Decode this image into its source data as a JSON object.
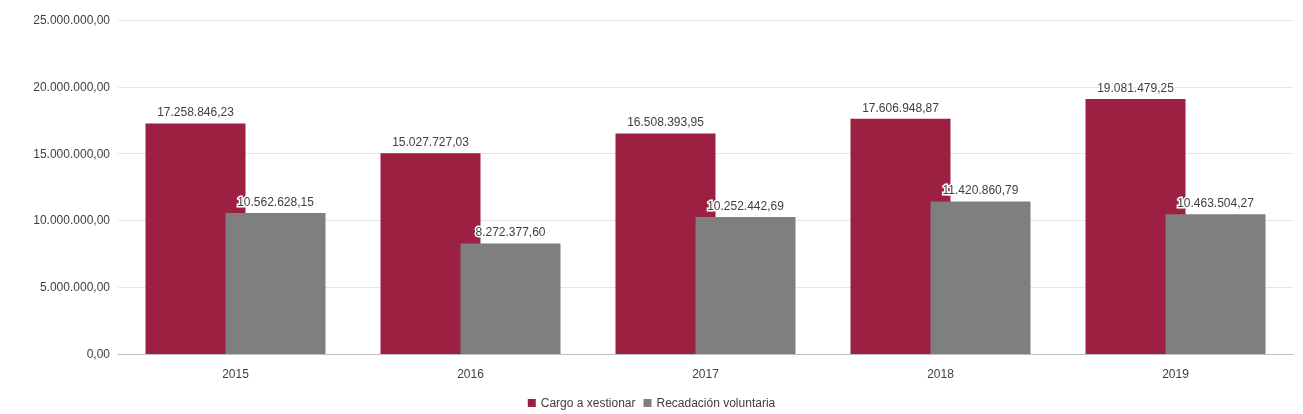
{
  "chart_data": {
    "type": "bar",
    "categories": [
      "2015",
      "2016",
      "2017",
      "2018",
      "2019"
    ],
    "series": [
      {
        "name": "Cargo a xestionar",
        "color": "#9b2042",
        "values": [
          17258846.23,
          15027727.03,
          16508393.95,
          17606948.87,
          19081479.25
        ],
        "value_labels": [
          "17.258.846,23",
          "15.027.727,03",
          "16.508.393,95",
          "17.606.948,87",
          "19.081.479,25"
        ]
      },
      {
        "name": "Recadación voluntaria",
        "color": "#7f7f7f",
        "values": [
          10562628.15,
          8272377.6,
          10252442.69,
          11420860.79,
          10463504.27
        ],
        "value_labels": [
          "10.562.628,15",
          "8.272.377,60",
          "10.252.442,69",
          "11.420.860,79",
          "10.463.504,27"
        ]
      }
    ],
    "ylim": [
      0,
      25000000
    ],
    "yticks": [
      {
        "value": 0,
        "label": "0,00"
      },
      {
        "value": 5000000,
        "label": "5.000.000,00"
      },
      {
        "value": 10000000,
        "label": "10.000.000,00"
      },
      {
        "value": 15000000,
        "label": "15.000.000,00"
      },
      {
        "value": 20000000,
        "label": "20.000.000,00"
      },
      {
        "value": 25000000,
        "label": "25.000.000,00"
      }
    ],
    "grid": "y",
    "legend": "bottom"
  }
}
